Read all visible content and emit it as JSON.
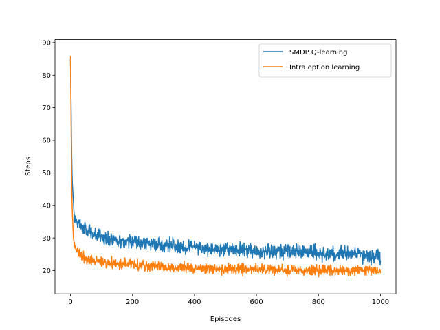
{
  "chart_data": {
    "type": "line",
    "title": "",
    "xlabel": "Episodes",
    "ylabel": "Steps",
    "xlim": [
      -50,
      1050
    ],
    "ylim": [
      12.9,
      90.9
    ],
    "xticks": [
      0,
      200,
      400,
      600,
      800,
      1000
    ],
    "yticks": [
      20,
      30,
      40,
      50,
      60,
      70,
      80,
      90
    ],
    "grid": false,
    "legend": "top-right",
    "series": [
      {
        "name": "SMDP Q-learning",
        "color": "#1f77b4",
        "x": [
          0,
          2,
          4,
          6,
          8,
          10,
          12,
          15,
          20,
          30,
          40,
          50,
          70,
          100,
          150,
          200,
          250,
          300,
          400,
          500,
          600,
          700,
          800,
          900,
          1000
        ],
        "y": [
          85,
          70,
          55,
          47,
          44,
          40,
          38,
          36,
          35,
          34,
          33,
          32.5,
          31.5,
          30.5,
          29.5,
          28.8,
          28.2,
          27.8,
          27.0,
          26.5,
          26.0,
          25.7,
          25.4,
          25.2,
          24.0
        ]
      },
      {
        "name": "Intra option learning",
        "color": "#ff7f0e",
        "x": [
          0,
          2,
          4,
          6,
          8,
          10,
          12,
          15,
          20,
          30,
          40,
          50,
          70,
          100,
          150,
          200,
          250,
          300,
          400,
          500,
          600,
          700,
          800,
          900,
          1000
        ],
        "y": [
          86,
          65,
          45,
          38,
          33,
          30,
          28.5,
          27,
          26,
          25,
          24,
          23.5,
          23,
          22.5,
          22,
          21.7,
          21.4,
          21.1,
          20.7,
          20.5,
          20.3,
          20.1,
          20.0,
          19.9,
          20.0
        ]
      }
    ]
  }
}
